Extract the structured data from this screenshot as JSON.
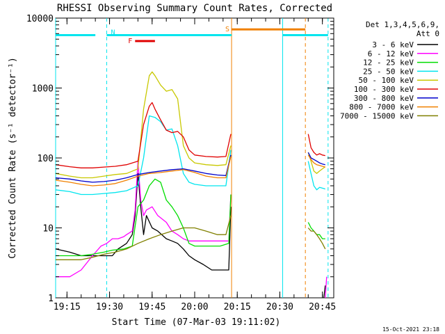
{
  "chart_data": {
    "type": "line",
    "title": "RHESSI Observing Summary Count Rates, Corrected",
    "xlabel": "Start Time (07-Mar-03 19:11:02)",
    "ylabel": "Corrected Count Rate (s⁻¹ detector⁻¹)",
    "yscale": "log",
    "ylim": [
      1,
      10000
    ],
    "xlim": [
      "19:11",
      "20:49"
    ],
    "x_ticks": [
      "19:15",
      "19:30",
      "19:45",
      "20:00",
      "20:15",
      "20:30",
      "20:45"
    ],
    "y_ticks": [
      "1",
      "10",
      "100",
      "1000",
      "10000"
    ],
    "legend_header": [
      "Det 1,3,4,5,6,9,",
      "Att 0"
    ],
    "legend_placement": "right",
    "timestamp": "15-Oct-2021 23:18",
    "markers": [
      {
        "label": "N",
        "color": "#00e5ee",
        "level": 5700,
        "segments": [
          [
            "19:11",
            "19:25"
          ],
          [
            "19:29",
            "20:13"
          ],
          [
            "20:31",
            "20:47"
          ]
        ]
      },
      {
        "label": "F",
        "color": "#e00000",
        "level": 4700,
        "segments": [
          [
            "19:39",
            "19:46"
          ]
        ]
      },
      {
        "label": "S",
        "color": "#f08000",
        "level": 6900,
        "segments": [
          [
            "20:13",
            "20:39"
          ]
        ]
      }
    ],
    "vlines": [
      {
        "time": "19:11",
        "color": "#00e5ee",
        "style": "solid"
      },
      {
        "time": "19:29",
        "color": "#00e5ee",
        "style": "dashed"
      },
      {
        "time": "20:13",
        "color": "#f08000",
        "style": "solid"
      },
      {
        "time": "20:31",
        "color": "#00e5ee",
        "style": "solid"
      },
      {
        "time": "20:39",
        "color": "#f08000",
        "style": "dashed"
      },
      {
        "time": "20:47",
        "color": "#00e5ee",
        "style": "dashed"
      }
    ],
    "series": [
      {
        "name": "3 - 6 keV",
        "color": "#000000",
        "segments": [
          {
            "x": [
              "19:11",
              "19:16",
              "19:20",
              "19:24",
              "19:28",
              "19:31",
              "19:33",
              "19:36",
              "19:38",
              "19:39",
              "19:40",
              "19:41",
              "19:42",
              "19:43",
              "19:45",
              "19:47",
              "19:50",
              "19:52",
              "19:54",
              "19:56",
              "19:58",
              "20:00",
              "20:03",
              "20:06",
              "20:08",
              "20:10",
              "20:12",
              "20:12:45"
            ],
            "y": [
              5,
              4.5,
              4,
              4,
              4,
              4,
              5,
              6,
              8,
              15,
              60,
              20,
              8,
              15,
              10,
              9,
              7,
              6.5,
              6,
              5,
              4,
              3.5,
              3,
              2.5,
              2.5,
              2.5,
              2.5,
              20
            ]
          },
          {
            "x": [
              "20:45:30",
              "20:46"
            ],
            "y": [
              1,
              1.5
            ]
          }
        ]
      },
      {
        "name": "6 - 12 keV",
        "color": "#ff00ff",
        "segments": [
          {
            "x": [
              "19:11",
              "19:16",
              "19:20",
              "19:24",
              "19:27",
              "19:29",
              "19:31",
              "19:33",
              "19:35",
              "19:36",
              "19:38",
              "19:39",
              "19:40",
              "19:41",
              "19:42",
              "19:43",
              "19:45",
              "19:47",
              "19:50",
              "19:52",
              "19:54",
              "19:56",
              "19:58",
              "20:00",
              "20:03",
              "20:06",
              "20:09",
              "20:12",
              "20:12:45"
            ],
            "y": [
              2,
              2,
              2.5,
              4,
              5.5,
              6,
              7,
              7,
              7.5,
              8,
              9,
              18,
              90,
              25,
              15,
              18,
              20,
              15,
              12,
              9,
              8,
              7,
              6.5,
              6.5,
              6.5,
              6.5,
              6.5,
              6.5,
              30
            ]
          },
          {
            "x": [
              "20:46",
              "20:46:30"
            ],
            "y": [
              1,
              2
            ]
          }
        ]
      },
      {
        "name": "12 - 25 keV",
        "color": "#00dd00",
        "segments": [
          {
            "x": [
              "19:11",
              "19:16",
              "19:20",
              "19:24",
              "19:28",
              "19:31",
              "19:35",
              "19:38",
              "19:40",
              "19:42",
              "19:44",
              "19:46",
              "19:48",
              "19:50",
              "19:52",
              "19:54",
              "19:56",
              "19:58",
              "20:00",
              "20:03",
              "20:06",
              "20:09",
              "20:12",
              "20:12:45"
            ],
            "y": [
              4,
              4,
              4,
              4.2,
              4.5,
              4.8,
              5,
              5.5,
              20,
              25,
              40,
              50,
              45,
              25,
              20,
              15,
              10,
              6,
              5.5,
              5.5,
              5.5,
              5.5,
              6,
              30
            ]
          },
          {
            "x": [
              "20:40",
              "20:41",
              "20:42",
              "20:43",
              "20:44",
              "20:45",
              "20:46"
            ],
            "y": [
              12,
              10,
              9,
              8,
              8,
              7,
              7
            ]
          }
        ]
      },
      {
        "name": "25 - 50 keV",
        "color": "#00e5ee",
        "segments": [
          {
            "x": [
              "19:11",
              "19:16",
              "19:20",
              "19:24",
              "19:28",
              "19:32",
              "19:36",
              "19:40",
              "19:42",
              "19:44",
              "19:46",
              "19:48",
              "19:50",
              "19:52",
              "19:54",
              "19:56",
              "19:58",
              "20:00",
              "20:04",
              "20:08",
              "20:11",
              "20:12:45"
            ],
            "y": [
              35,
              33,
              30,
              30,
              31,
              32,
              34,
              40,
              100,
              400,
              380,
              330,
              250,
              260,
              150,
              60,
              45,
              42,
              40,
              40,
              40,
              130
            ]
          },
          {
            "x": [
              "20:40",
              "20:41",
              "20:42",
              "20:43",
              "20:44",
              "20:45",
              "20:46"
            ],
            "y": [
              90,
              60,
              40,
              35,
              38,
              37,
              36
            ]
          }
        ]
      },
      {
        "name": "50 - 100 keV",
        "color": "#c8c800",
        "segments": [
          {
            "x": [
              "19:11",
              "19:16",
              "19:20",
              "19:24",
              "19:28",
              "19:32",
              "19:36",
              "19:40",
              "19:42",
              "19:44",
              "19:45",
              "19:46",
              "19:48",
              "19:50",
              "19:52",
              "19:54",
              "19:56",
              "19:58",
              "20:00",
              "20:04",
              "20:08",
              "20:11",
              "20:12:45"
            ],
            "y": [
              60,
              55,
              52,
              52,
              55,
              58,
              60,
              70,
              500,
              1500,
              1700,
              1500,
              1100,
              900,
              950,
              700,
              150,
              100,
              85,
              80,
              78,
              80,
              150
            ]
          },
          {
            "x": [
              "20:40",
              "20:41",
              "20:42",
              "20:43",
              "20:44",
              "20:45",
              "20:46"
            ],
            "y": [
              120,
              90,
              65,
              60,
              65,
              70,
              75
            ]
          }
        ]
      },
      {
        "name": "100 - 300 keV",
        "color": "#e00000",
        "segments": [
          {
            "x": [
              "19:11",
              "19:16",
              "19:20",
              "19:24",
              "19:28",
              "19:32",
              "19:36",
              "19:40",
              "19:42",
              "19:44",
              "19:45",
              "19:46",
              "19:48",
              "19:50",
              "19:52",
              "19:54",
              "19:56",
              "19:58",
              "20:00",
              "20:04",
              "20:08",
              "20:11",
              "20:12:45"
            ],
            "y": [
              80,
              75,
              72,
              72,
              74,
              76,
              80,
              90,
              300,
              550,
              620,
              500,
              350,
              250,
              230,
              240,
              200,
              130,
              110,
              105,
              103,
              105,
              220
            ]
          },
          {
            "x": [
              "20:40",
              "20:41",
              "20:42",
              "20:43",
              "20:44",
              "20:45",
              "20:46"
            ],
            "y": [
              220,
              140,
              120,
              110,
              115,
              110,
              108
            ]
          }
        ]
      },
      {
        "name": "300 - 800 keV",
        "color": "#0000cc",
        "segments": [
          {
            "x": [
              "19:11",
              "19:16",
              "19:20",
              "19:24",
              "19:28",
              "19:32",
              "19:36",
              "19:40",
              "19:44",
              "19:48",
              "19:52",
              "19:56",
              "20:00",
              "20:04",
              "20:08",
              "20:11",
              "20:12:45"
            ],
            "y": [
              52,
              50,
              47,
              45,
              46,
              48,
              52,
              58,
              62,
              65,
              68,
              70,
              65,
              60,
              57,
              56,
              110
            ]
          },
          {
            "x": [
              "20:40",
              "20:41",
              "20:42",
              "20:43",
              "20:44",
              "20:45",
              "20:46"
            ],
            "y": [
              120,
              100,
              95,
              90,
              85,
              82,
              80
            ]
          }
        ]
      },
      {
        "name": "800 - 7000 keV",
        "color": "#f08000",
        "segments": [
          {
            "x": [
              "19:11",
              "19:16",
              "19:20",
              "19:24",
              "19:28",
              "19:32",
              "19:36",
              "19:40",
              "19:44",
              "19:48",
              "19:52",
              "19:56",
              "20:00",
              "20:04",
              "20:08",
              "20:11",
              "20:12:45"
            ],
            "y": [
              48,
              45,
              42,
              40,
              41,
              43,
              48,
              55,
              60,
              62,
              65,
              68,
              62,
              55,
              52,
              52,
              105
            ]
          },
          {
            "x": [
              "20:40",
              "20:41",
              "20:42",
              "20:43",
              "20:44",
              "20:45",
              "20:46"
            ],
            "y": [
              110,
              95,
              85,
              80,
              78,
              76,
              74
            ]
          }
        ]
      },
      {
        "name": "7000 - 15000 keV",
        "color": "#808000",
        "segments": [
          {
            "x": [
              "19:11",
              "19:16",
              "19:20",
              "19:24",
              "19:28",
              "19:32",
              "19:36",
              "19:40",
              "19:44",
              "19:48",
              "19:52",
              "19:56",
              "20:00",
              "20:04",
              "20:08",
              "20:11",
              "20:12:45"
            ],
            "y": [
              3.5,
              3.5,
              3.5,
              3.8,
              4.2,
              4.5,
              5,
              6,
              7,
              8,
              9,
              10,
              10,
              9,
              8,
              8,
              15
            ]
          },
          {
            "x": [
              "20:40",
              "20:41",
              "20:42",
              "20:43",
              "20:44",
              "20:45",
              "20:46"
            ],
            "y": [
              10,
              9,
              9,
              8,
              7,
              6,
              5
            ]
          }
        ]
      }
    ]
  }
}
